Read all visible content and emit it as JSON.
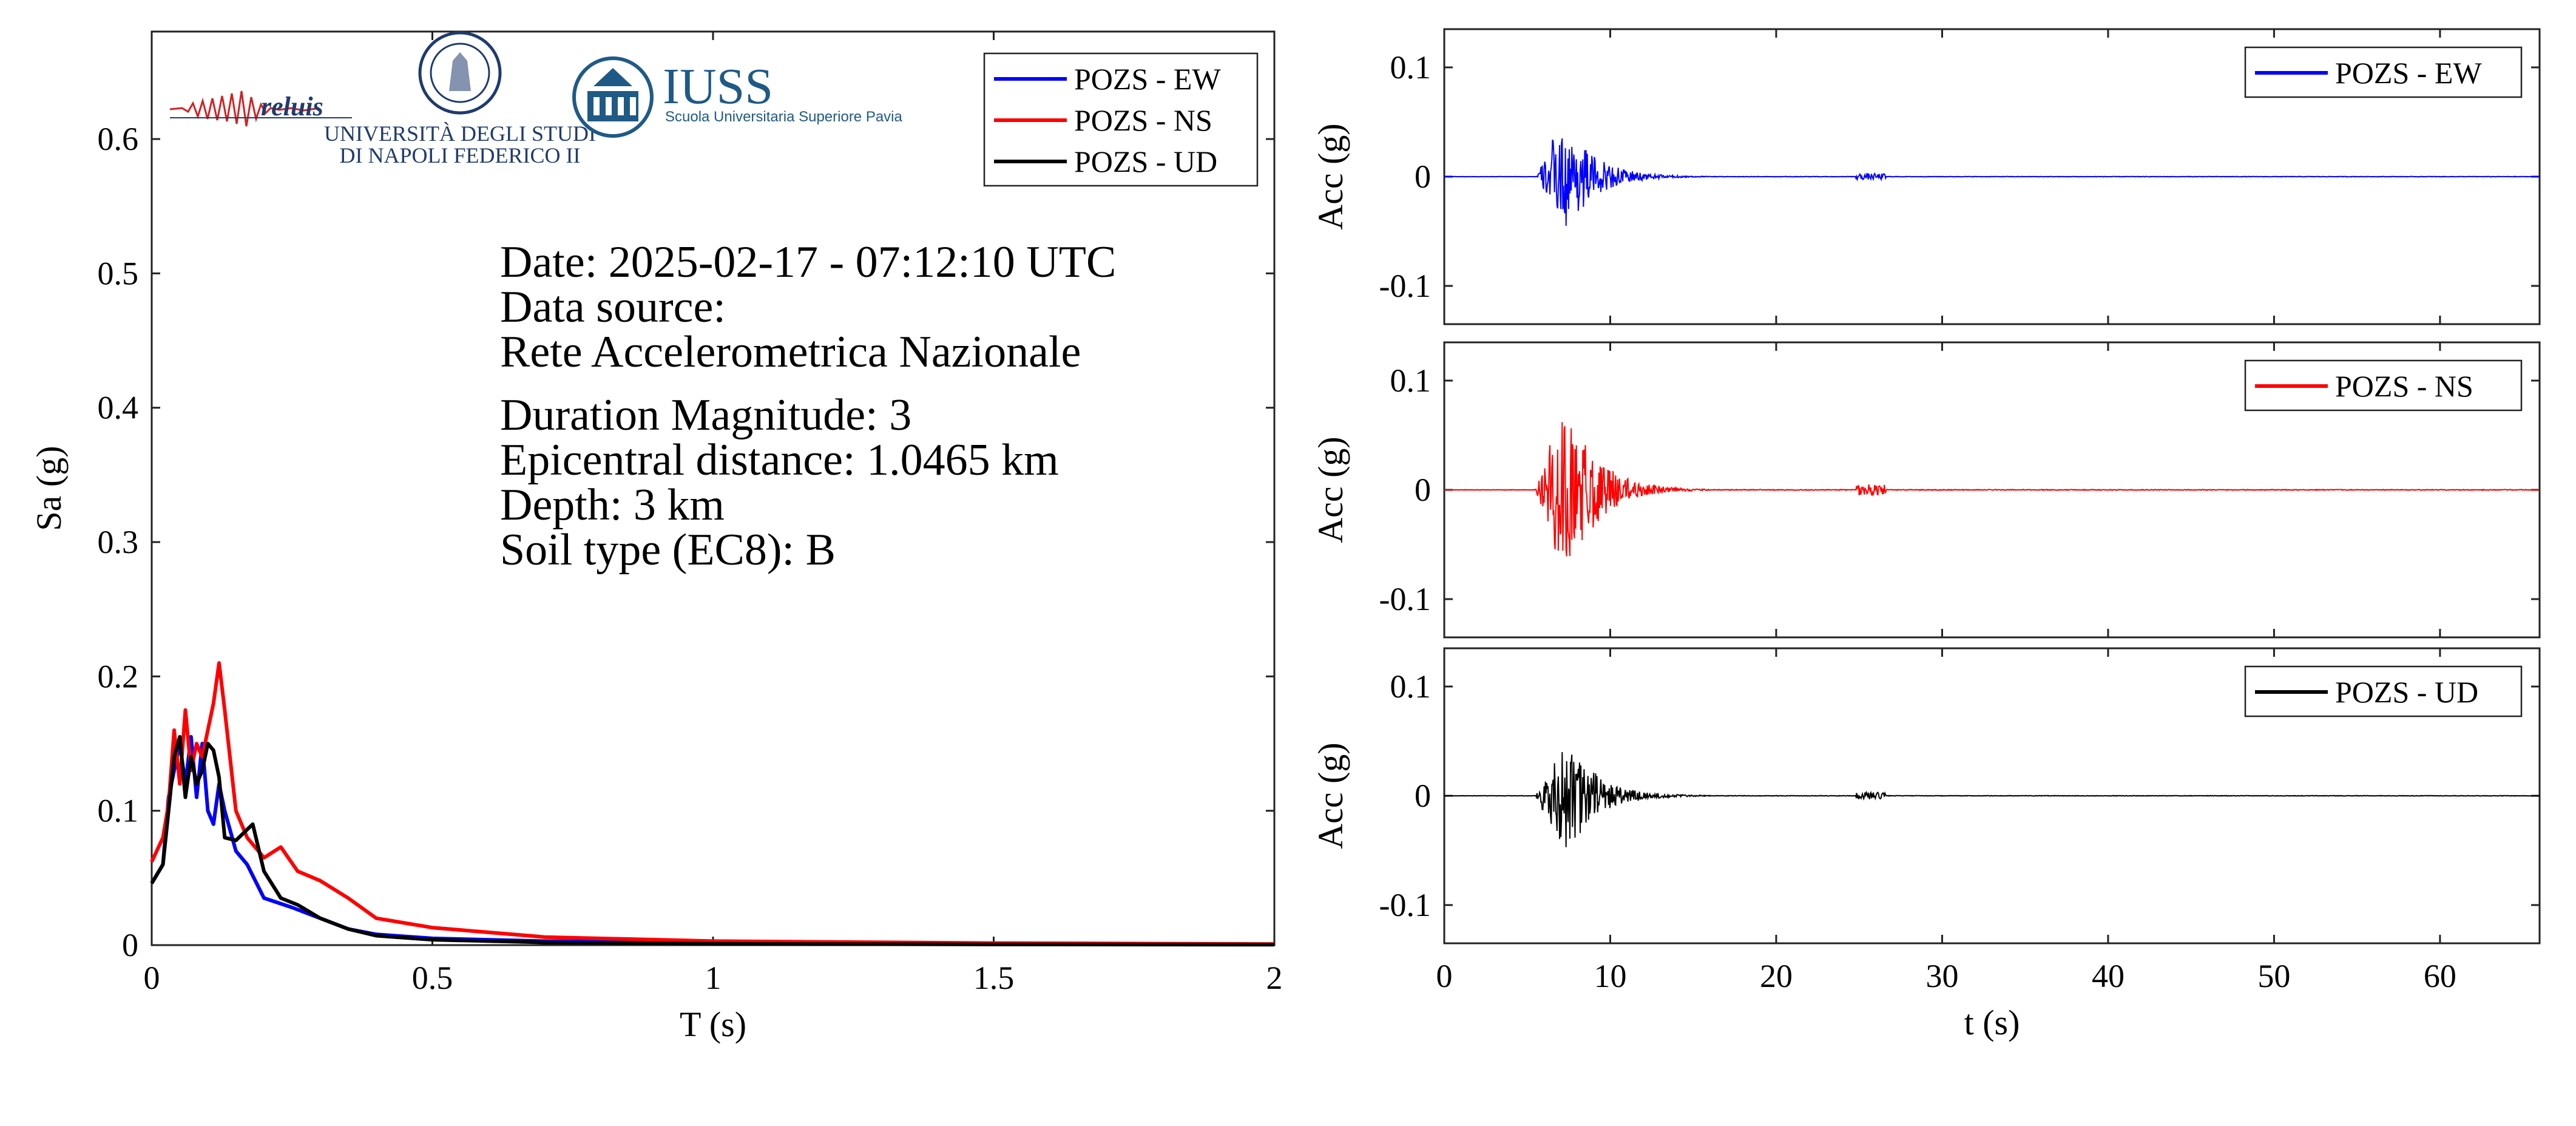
{
  "colors": {
    "EW": "#0000ff",
    "NS": "#ff0000",
    "UD": "#000000"
  },
  "logos": {
    "reluis": "reluis",
    "unina_line1": "UNIVERSITÀ DEGLI STUDI",
    "unina_line2": "DI NAPOLI FEDERICO II",
    "iuss": "IUSS",
    "iuss_sub": "Scuola Universitaria Superiore Pavia"
  },
  "info": {
    "date": "Date: 2025-02-17 - 07:12:10 UTC",
    "source_label": "Data source:",
    "source": "Rete Accelerometrica Nazionale",
    "magnitude": "Duration Magnitude: 3",
    "distance": "Epicentral distance: 1.0465 km",
    "depth": "Depth: 3 km",
    "soil": "Soil type (EC8): B"
  },
  "chart_data": [
    {
      "type": "line",
      "xlabel": "T (s)",
      "ylabel": "Sa (g)",
      "xlim": [
        0,
        2
      ],
      "ylim": [
        0,
        0.68
      ],
      "xticks": [
        0,
        0.5,
        1,
        1.5,
        2
      ],
      "xtick_labels": [
        "0",
        "0.5",
        "1",
        "1.5",
        "2"
      ],
      "yticks": [
        0,
        0.1,
        0.2,
        0.3,
        0.4,
        0.5,
        0.6
      ],
      "ytick_labels": [
        "0",
        "0.1",
        "0.2",
        "0.3",
        "0.4",
        "0.5",
        "0.6"
      ],
      "legend_position": "top-right",
      "series": [
        {
          "name": "POZS - EW",
          "color": "#0000ff",
          "x": [
            0,
            0.02,
            0.03,
            0.04,
            0.05,
            0.06,
            0.07,
            0.08,
            0.09,
            0.1,
            0.11,
            0.12,
            0.13,
            0.15,
            0.17,
            0.2,
            0.25,
            0.3,
            0.35,
            0.4,
            0.5,
            0.7,
            1,
            1.5,
            2
          ],
          "y": [
            0.046,
            0.06,
            0.11,
            0.13,
            0.15,
            0.12,
            0.155,
            0.11,
            0.15,
            0.1,
            0.09,
            0.12,
            0.1,
            0.07,
            0.06,
            0.035,
            0.028,
            0.02,
            0.012,
            0.008,
            0.005,
            0.003,
            0.002,
            0.001,
            0.0005
          ]
        },
        {
          "name": "POZS - NS",
          "color": "#ff0000",
          "x": [
            0,
            0.02,
            0.03,
            0.04,
            0.05,
            0.06,
            0.07,
            0.08,
            0.09,
            0.1,
            0.11,
            0.12,
            0.13,
            0.15,
            0.17,
            0.2,
            0.23,
            0.26,
            0.3,
            0.35,
            0.4,
            0.5,
            0.7,
            1,
            1.5,
            2
          ],
          "y": [
            0.062,
            0.08,
            0.105,
            0.16,
            0.12,
            0.175,
            0.13,
            0.15,
            0.14,
            0.16,
            0.18,
            0.21,
            0.175,
            0.1,
            0.08,
            0.065,
            0.073,
            0.055,
            0.048,
            0.035,
            0.02,
            0.013,
            0.006,
            0.003,
            0.0015,
            0.0008
          ]
        },
        {
          "name": "POZS - UD",
          "color": "#000000",
          "x": [
            0,
            0.02,
            0.03,
            0.04,
            0.05,
            0.06,
            0.07,
            0.08,
            0.09,
            0.1,
            0.11,
            0.12,
            0.13,
            0.15,
            0.18,
            0.2,
            0.23,
            0.26,
            0.3,
            0.35,
            0.4,
            0.5,
            0.7,
            1,
            1.5,
            2
          ],
          "y": [
            0.046,
            0.06,
            0.1,
            0.14,
            0.155,
            0.11,
            0.14,
            0.12,
            0.13,
            0.15,
            0.145,
            0.125,
            0.08,
            0.078,
            0.09,
            0.055,
            0.035,
            0.03,
            0.02,
            0.012,
            0.007,
            0.004,
            0.002,
            0.001,
            0.0005,
            0.0003
          ]
        }
      ]
    },
    {
      "type": "line",
      "xlabel": "",
      "ylabel": "Acc (g)",
      "xlim": [
        0,
        66
      ],
      "ylim": [
        -0.135,
        0.135
      ],
      "yticks": [
        -0.1,
        0,
        0.1
      ],
      "ytick_labels": [
        "-0.1",
        "0",
        "0.1"
      ],
      "legend_position": "top-right",
      "series": [
        {
          "name": "POZS - EW",
          "color": "#0000ff",
          "peak": 0.035,
          "trough": -0.045
        }
      ]
    },
    {
      "type": "line",
      "xlabel": "",
      "ylabel": "Acc (g)",
      "xlim": [
        0,
        66
      ],
      "ylim": [
        -0.135,
        0.135
      ],
      "yticks": [
        -0.1,
        0,
        0.1
      ],
      "ytick_labels": [
        "-0.1",
        "0",
        "0.1"
      ],
      "legend_position": "top-right",
      "series": [
        {
          "name": "POZS - NS",
          "color": "#ff0000",
          "peak": 0.062,
          "trough": -0.055
        }
      ]
    },
    {
      "type": "line",
      "xlabel": "t (s)",
      "ylabel": "Acc (g)",
      "xlim": [
        0,
        66
      ],
      "ylim": [
        -0.135,
        0.135
      ],
      "xticks": [
        0,
        10,
        20,
        30,
        40,
        50,
        60
      ],
      "xtick_labels": [
        "0",
        "10",
        "20",
        "30",
        "40",
        "50",
        "60"
      ],
      "yticks": [
        -0.1,
        0,
        0.1
      ],
      "ytick_labels": [
        "-0.1",
        "0",
        "0.1"
      ],
      "legend_position": "top-right",
      "series": [
        {
          "name": "POZS - UD",
          "color": "#000000",
          "peak": 0.04,
          "trough": -0.047
        }
      ]
    }
  ]
}
